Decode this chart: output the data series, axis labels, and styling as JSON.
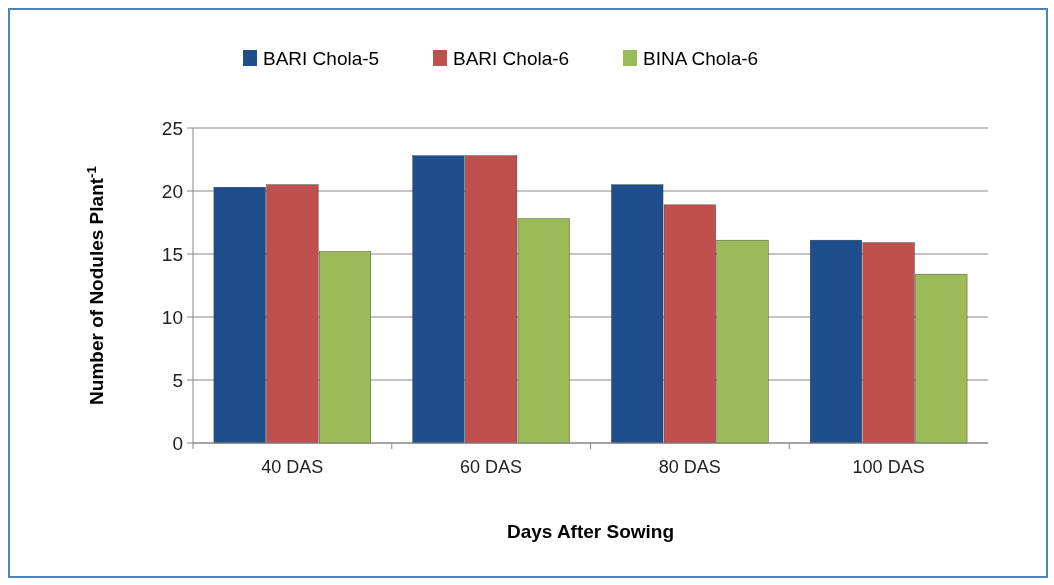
{
  "chart_data": {
    "type": "bar",
    "xlabel": "Days After Sowing",
    "ylabel": "Number of Nodules Plant$^{-1}$",
    "categories": [
      "40 DAS",
      "60 DAS",
      "80 DAS",
      "100 DAS"
    ],
    "series": [
      {
        "name": "BARI Chola-5",
        "color": "#1f4e8c",
        "values": [
          20.3,
          22.8,
          20.5,
          16.1
        ]
      },
      {
        "name": "BARI Chola-6",
        "color": "#c0504d",
        "values": [
          20.5,
          22.8,
          18.9,
          15.9
        ]
      },
      {
        "name": "BINA Chola-6",
        "color": "#9bbb59",
        "values": [
          15.2,
          17.8,
          16.1,
          13.4
        ]
      }
    ],
    "ylim": [
      0,
      25
    ],
    "yticks": [
      0,
      5,
      10,
      15,
      20,
      25
    ],
    "grid": "y",
    "legend": "top"
  }
}
